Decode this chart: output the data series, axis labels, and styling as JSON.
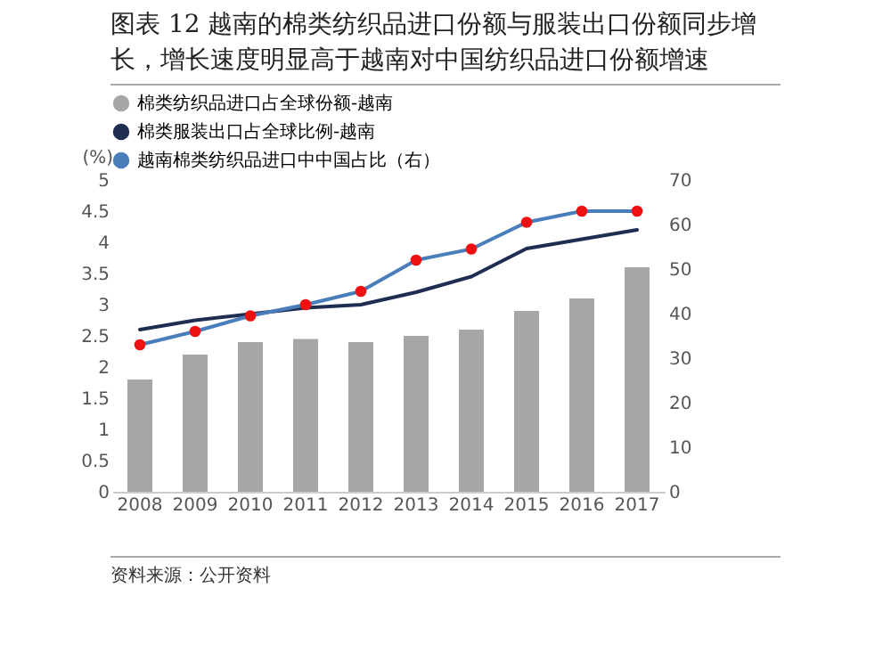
{
  "chart_data": {
    "type": "bar",
    "title": "图表 12 越南的棉类纺织品进口份额与服装出口份额同步增长，增长速度明显高于越南对中国纺织品进口份额增速",
    "ylabel": "(%)",
    "categories": [
      "2008",
      "2009",
      "2010",
      "2011",
      "2012",
      "2013",
      "2014",
      "2015",
      "2016",
      "2017"
    ],
    "series": [
      {
        "name": "棉类纺织品进口占全球份额-越南",
        "color": "#a6a6a6",
        "values": [
          1.8,
          2.2,
          2.4,
          2.45,
          2.4,
          2.5,
          2.6,
          2.9,
          3.1,
          3.6
        ]
      },
      {
        "name": "棉类服装出口占全球比例-越南",
        "type": "line",
        "color": "#1f2d52",
        "values": [
          2.6,
          2.75,
          2.85,
          2.95,
          3.0,
          3.2,
          3.45,
          3.9,
          4.05,
          4.2
        ]
      },
      {
        "name": "越南棉类纺织品进口中中国占比（右）",
        "type": "line",
        "axis": "y2",
        "marker": "circle",
        "color": "#4a7ebb",
        "values": [
          33,
          36,
          39.5,
          42,
          45,
          52,
          54.5,
          60.5,
          63,
          63
        ]
      }
    ],
    "ylim": [
      0,
      5
    ],
    "yticks": [
      0,
      0.5,
      1,
      1.5,
      2,
      2.5,
      3,
      3.5,
      4,
      4.5,
      5
    ],
    "y2lim": [
      0,
      70
    ],
    "y2ticks": [
      0,
      10,
      20,
      30,
      40,
      50,
      60,
      70
    ],
    "grid": false,
    "legend": "top",
    "annotations": [
      "资料来源：公开资料"
    ]
  }
}
